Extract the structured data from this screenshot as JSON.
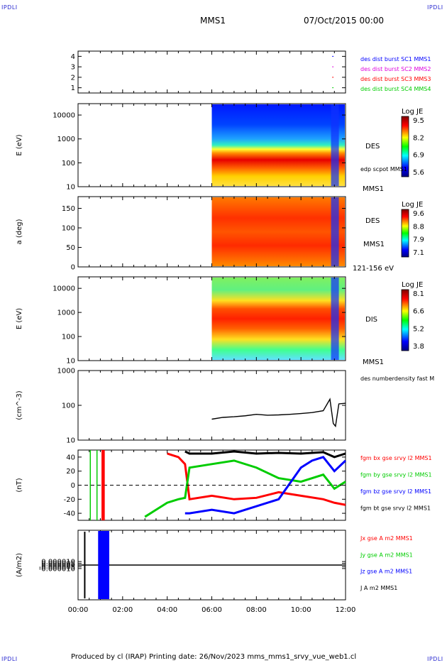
{
  "corners": {
    "top_left": "IPDLI",
    "top_right": "IPDLI",
    "bottom_left": "IPDLI",
    "bottom_right": "IPDLI"
  },
  "header": {
    "spacecraft": "MMS1",
    "datetime": "07/Oct/2015 00:00"
  },
  "footer": {
    "text": "Produced by cl (IRAP)   Printing date: 26/Nov/2023   mms_mms1_srvy_vue_web1.cl"
  },
  "colors": {
    "blue": "#0000ff",
    "magenta": "#dd00dd",
    "red": "#ff0000",
    "green": "#00cc00",
    "black": "#000000"
  },
  "chart_data": [
    {
      "type": "line",
      "panel": "burst",
      "yticks": [
        "4",
        "3",
        "2",
        "1"
      ],
      "ylim": [
        0.5,
        4.5
      ],
      "legend": [
        {
          "label": "des dist burst SC1 MMS1",
          "color": "#0000ff"
        },
        {
          "label": "des dist burst SC2 MMS2",
          "color": "#dd00dd"
        },
        {
          "label": "des dist burst SC3 MMS3",
          "color": "#ff0000"
        },
        {
          "label": "des dist burst SC4 MMS4",
          "color": "#00cc00"
        }
      ],
      "bursts": [
        {
          "y": 4,
          "x": [
            11.4,
            11.65
          ]
        },
        {
          "y": 3,
          "x": [
            11.4,
            11.65
          ]
        },
        {
          "y": 2,
          "x": [
            11.4,
            11.65
          ]
        },
        {
          "y": 1,
          "x": [
            11.4,
            11.65
          ]
        }
      ]
    },
    {
      "type": "heatmap",
      "panel": "des_energy",
      "ylabel": "E (eV)",
      "ylog": true,
      "ylim": [
        10,
        30000
      ],
      "yticks": [
        "10000",
        "1000",
        "100",
        "10"
      ],
      "labels": [
        "DES",
        "edp scpot MMS1",
        "MMS1"
      ],
      "colorbar": {
        "title": "Log JE",
        "ticks": [
          "9.5",
          "8.2",
          "6.9",
          "5.6"
        ]
      },
      "data_start_hour": 6.0
    },
    {
      "type": "heatmap",
      "panel": "des_pitch",
      "ylabel": "a (deg)",
      "ylim": [
        0,
        180
      ],
      "yticks": [
        "150",
        "100",
        "50",
        "0"
      ],
      "labels": [
        "DES",
        "MMS1",
        "121-156 eV"
      ],
      "colorbar": {
        "title": "Log JE",
        "ticks": [
          "9.6",
          "8.8",
          "7.9",
          "7.1"
        ]
      },
      "data_start_hour": 6.0
    },
    {
      "type": "heatmap",
      "panel": "dis_energy",
      "ylabel": "E (eV)",
      "ylog": true,
      "ylim": [
        10,
        30000
      ],
      "yticks": [
        "10000",
        "1000",
        "100",
        "10"
      ],
      "labels": [
        "DIS",
        "MMS1"
      ],
      "colorbar": {
        "title": "Log JE",
        "ticks": [
          "8.1",
          "6.6",
          "5.2",
          "3.8"
        ]
      },
      "data_start_hour": 6.0
    },
    {
      "type": "line",
      "panel": "density",
      "ylabel": "(cm^-3)",
      "ylog": true,
      "ylim": [
        10,
        1000
      ],
      "yticks": [
        "1000",
        "100",
        "10"
      ],
      "legend": [
        {
          "label": "des numberdensity fast M",
          "color": "#000000"
        }
      ],
      "series": [
        {
          "x": [
            6.0,
            6.5,
            7.0,
            7.5,
            8.0,
            8.5,
            9.0,
            9.5,
            10.0,
            10.5,
            11.0,
            11.3,
            11.45,
            11.55,
            11.7,
            12.0
          ],
          "y": [
            40,
            45,
            47,
            50,
            55,
            52,
            53,
            55,
            58,
            62,
            70,
            150,
            30,
            25,
            110,
            115
          ]
        }
      ]
    },
    {
      "type": "line",
      "panel": "magnetic_field",
      "ylabel": "(nT)",
      "ylim": [
        -50,
        50
      ],
      "yticks": [
        "40",
        "20",
        "0",
        "-20",
        "-40"
      ],
      "legend": [
        {
          "label": "fgm bx gse srvy l2 MMS1",
          "color": "#ff0000"
        },
        {
          "label": "fgm by gse srvy l2 MMS1",
          "color": "#00cc00"
        },
        {
          "label": "fgm bz gse srvy l2 MMS1",
          "color": "#0000ff"
        },
        {
          "label": "fgm bt gse srvy l2 MMS1",
          "color": "#000000"
        }
      ],
      "series": [
        {
          "x": [
            4.0,
            4.5,
            4.8,
            5.0,
            6.0,
            7.0,
            8.0,
            9.0,
            10.0,
            11.0,
            11.5,
            12.0
          ],
          "y": [
            45,
            40,
            30,
            -20,
            -15,
            -20,
            -18,
            -10,
            -15,
            -20,
            -25,
            -28
          ]
        },
        {
          "x": [
            3.0,
            3.5,
            4.0,
            4.5,
            4.8,
            5.0,
            6.0,
            7.0,
            8.0,
            9.0,
            10.0,
            11.0,
            11.5,
            12.0
          ],
          "y": [
            -45,
            -35,
            -25,
            -20,
            -18,
            25,
            30,
            35,
            25,
            10,
            5,
            15,
            -5,
            5
          ]
        },
        {
          "x": [
            4.8,
            5.0,
            6.0,
            7.0,
            8.0,
            9.0,
            10.0,
            10.5,
            11.0,
            11.5,
            12.0
          ],
          "y": [
            -40,
            -40,
            -35,
            -40,
            -30,
            -20,
            25,
            35,
            40,
            20,
            35
          ]
        },
        {
          "x": [
            4.8,
            5.0,
            6.0,
            7.0,
            8.0,
            9.0,
            10.0,
            11.0,
            11.5,
            12.0
          ],
          "y": [
            48,
            45,
            45,
            48,
            45,
            46,
            45,
            47,
            40,
            45
          ]
        }
      ]
    },
    {
      "type": "line",
      "panel": "current",
      "ylabel": "(A/m2)",
      "ylim": [
        -0.0001,
        0.0001
      ],
      "yticks": [
        "0.000010",
        "0.000005",
        "0.000000",
        "-0.000005",
        "-0.000010"
      ],
      "legend": [
        {
          "label": "Jx gse A m2 MMS1",
          "color": "#ff0000"
        },
        {
          "label": "Jy gse A m2 MMS1",
          "color": "#00cc00"
        },
        {
          "label": "Jz gse A m2 MMS1",
          "color": "#0000ff"
        },
        {
          "label": "J A m2 MMS1",
          "color": "#000000"
        }
      ],
      "xticks": [
        "00:00",
        "02:00",
        "04:00",
        "06:00",
        "08:00",
        "10:00",
        "12:00"
      ],
      "xlim": [
        0,
        12
      ]
    }
  ]
}
